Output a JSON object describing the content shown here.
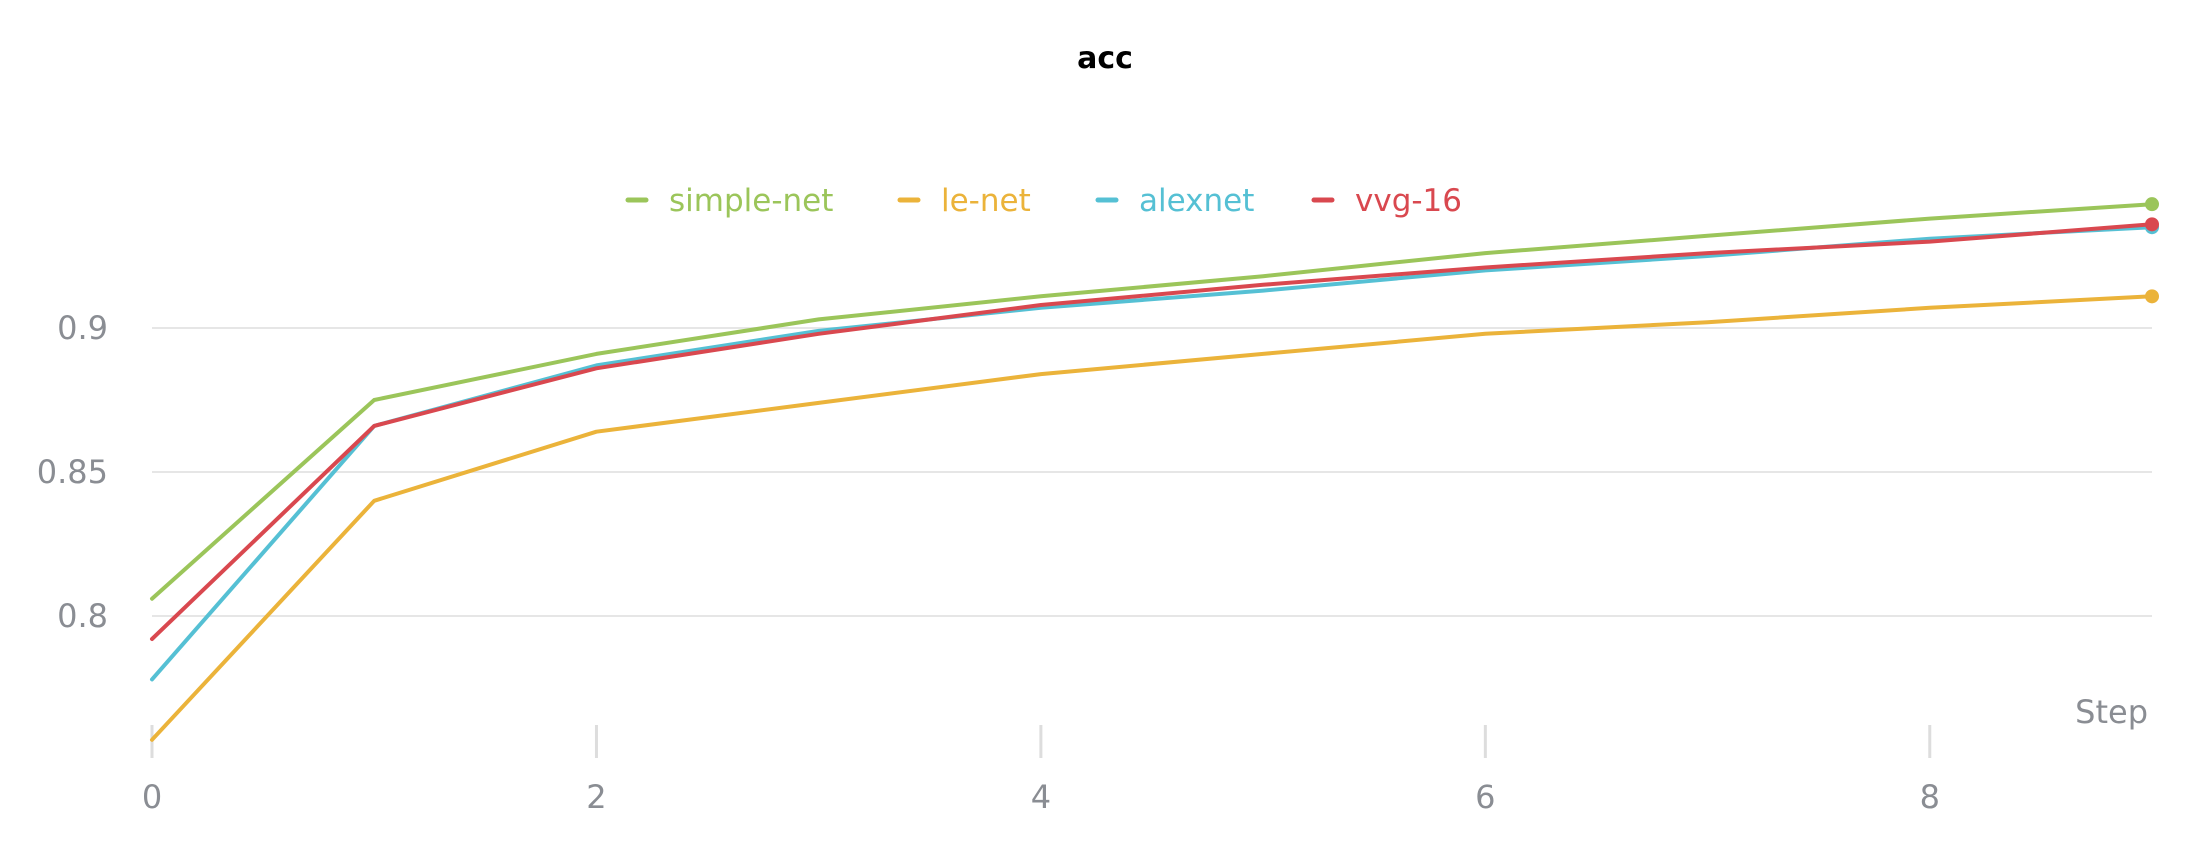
{
  "chart_data": {
    "type": "line",
    "title": "acc",
    "xlabel": "Step",
    "ylabel": "",
    "x": [
      0,
      1,
      2,
      3,
      4,
      5,
      6,
      7,
      8,
      9
    ],
    "xlim": [
      0,
      9
    ],
    "ylim": [
      0.757,
      0.96
    ],
    "xticks": [
      0,
      2,
      4,
      6,
      8
    ],
    "yticks": [
      0.8,
      0.85,
      0.9
    ],
    "ytick_labels": [
      "0.8",
      "0.85",
      "0.9"
    ],
    "grid": true,
    "legend_position": "top-center",
    "series": [
      {
        "name": "simple-net",
        "color": "#9bc55a",
        "values": [
          0.806,
          0.875,
          0.891,
          0.903,
          0.911,
          0.918,
          0.926,
          0.932,
          0.938,
          0.943
        ]
      },
      {
        "name": "le-net",
        "color": "#ebb33a",
        "values": [
          0.757,
          0.84,
          0.864,
          0.874,
          0.884,
          0.891,
          0.898,
          0.902,
          0.907,
          0.911
        ]
      },
      {
        "name": "alexnet",
        "color": "#55c0d4",
        "values": [
          0.778,
          0.866,
          0.887,
          0.899,
          0.907,
          0.913,
          0.92,
          0.925,
          0.931,
          0.935
        ]
      },
      {
        "name": "vvg-16",
        "color": "#d9484f",
        "values": [
          0.792,
          0.866,
          0.886,
          0.898,
          0.908,
          0.915,
          0.921,
          0.926,
          0.93,
          0.936
        ]
      }
    ]
  }
}
